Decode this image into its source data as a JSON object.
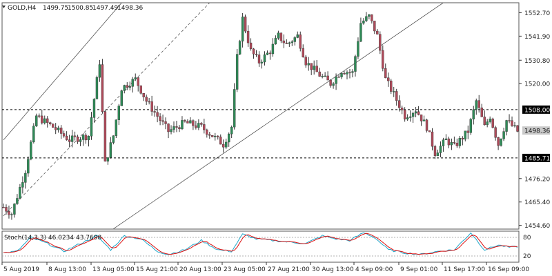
{
  "header": {
    "symbol": "GOLD,H4",
    "open": "1499.75",
    "high": "1500.85",
    "low": "1497.49",
    "close": "1498.36"
  },
  "indicator": {
    "label": "Stoch(14,3,3) 46.0234 43.7698",
    "level_high": "80",
    "level_low": "20"
  },
  "chart_data": {
    "type": "candlestick",
    "price_range": [
      1452.9,
      1557.3
    ],
    "y_ticks": [
      "1552.70",
      "1541.90",
      "1530.80",
      "1520.00",
      "1508.00",
      "1498.36",
      "1485.71",
      "1476.20",
      "1465.40",
      "1454.60"
    ],
    "x_ticks": [
      "5 Aug 2019",
      "8 Aug 13:00",
      "13 Aug 05:00",
      "15 Aug 21:00",
      "20 Aug 13:00",
      "23 Aug 05:00",
      "27 Aug 21:00",
      "30 Aug 13:00",
      "4 Sep 09:00",
      "9 Sep 01:00",
      "11 Sep 17:00",
      "16 Sep 09:00"
    ],
    "levels": [
      {
        "value": 1508.0,
        "label": "1508.00",
        "style": "dashed"
      },
      {
        "value": 1485.71,
        "label": "1485.71",
        "style": "dashed"
      }
    ],
    "current_price": {
      "value": 1498.36,
      "label": "1498.36"
    },
    "waypoints": [
      [
        0,
        1463
      ],
      [
        3,
        1460
      ],
      [
        8,
        1480
      ],
      [
        12,
        1505
      ],
      [
        18,
        1500
      ],
      [
        24,
        1494
      ],
      [
        31,
        1496
      ],
      [
        35,
        1530
      ],
      [
        37,
        1483
      ],
      [
        40,
        1496
      ],
      [
        43,
        1518
      ],
      [
        48,
        1522
      ],
      [
        52,
        1512
      ],
      [
        56,
        1505
      ],
      [
        60,
        1498
      ],
      [
        66,
        1502
      ],
      [
        72,
        1500
      ],
      [
        76,
        1496
      ],
      [
        80,
        1492
      ],
      [
        83,
        1500
      ],
      [
        85,
        1532
      ],
      [
        87,
        1550
      ],
      [
        90,
        1535
      ],
      [
        93,
        1530
      ],
      [
        97,
        1535
      ],
      [
        100,
        1542
      ],
      [
        103,
        1538
      ],
      [
        107,
        1542
      ],
      [
        110,
        1530
      ],
      [
        115,
        1524
      ],
      [
        119,
        1520
      ],
      [
        123,
        1526
      ],
      [
        127,
        1525
      ],
      [
        130,
        1548
      ],
      [
        133,
        1551
      ],
      [
        136,
        1542
      ],
      [
        139,
        1522
      ],
      [
        142,
        1515
      ],
      [
        146,
        1505
      ],
      [
        150,
        1508
      ],
      [
        154,
        1500
      ],
      [
        157,
        1488
      ],
      [
        161,
        1494
      ],
      [
        164,
        1491
      ],
      [
        169,
        1498
      ],
      [
        172,
        1512
      ],
      [
        175,
        1500
      ],
      [
        177,
        1505
      ],
      [
        180,
        1492
      ],
      [
        183,
        1503
      ],
      [
        187,
        1498
      ]
    ],
    "stoch_waypoints": [
      [
        0,
        30
      ],
      [
        5,
        35
      ],
      [
        10,
        80
      ],
      [
        16,
        60
      ],
      [
        22,
        35
      ],
      [
        28,
        60
      ],
      [
        34,
        85
      ],
      [
        39,
        40
      ],
      [
        44,
        85
      ],
      [
        50,
        75
      ],
      [
        56,
        35
      ],
      [
        60,
        25
      ],
      [
        66,
        40
      ],
      [
        72,
        70
      ],
      [
        78,
        40
      ],
      [
        83,
        35
      ],
      [
        87,
        90
      ],
      [
        92,
        75
      ],
      [
        98,
        70
      ],
      [
        104,
        65
      ],
      [
        110,
        60
      ],
      [
        116,
        85
      ],
      [
        121,
        75
      ],
      [
        126,
        70
      ],
      [
        131,
        95
      ],
      [
        135,
        80
      ],
      [
        140,
        40
      ],
      [
        146,
        30
      ],
      [
        152,
        25
      ],
      [
        158,
        35
      ],
      [
        164,
        40
      ],
      [
        170,
        95
      ],
      [
        175,
        40
      ],
      [
        180,
        55
      ],
      [
        184,
        48
      ],
      [
        187,
        50
      ]
    ],
    "channel_lines": [
      {
        "from": [
          0,
          1494
        ],
        "to": [
          43,
          1557.3
        ]
      },
      {
        "from": [
          0,
          1459
        ],
        "to": [
          75,
          1557.3
        ]
      },
      {
        "from": [
          40,
          1453
        ],
        "to": [
          160,
          1557.3
        ]
      }
    ]
  }
}
